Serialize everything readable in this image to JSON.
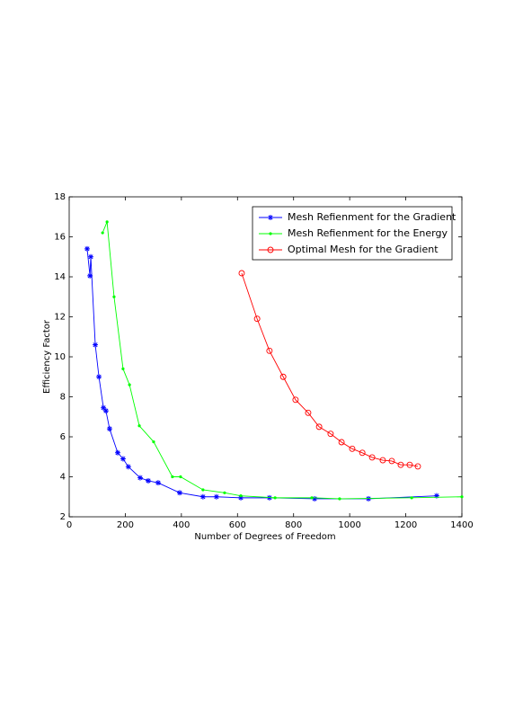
{
  "chart_data": {
    "type": "line",
    "x_label": "Number of Degrees of Freedom",
    "y_label": "Efficiency Factor",
    "xlim": [
      0,
      1400
    ],
    "xticks": [
      0,
      200,
      400,
      600,
      800,
      1000,
      1200,
      1400
    ],
    "ylim": [
      2,
      18
    ],
    "yticks": [
      2,
      4,
      6,
      8,
      10,
      12,
      14,
      16,
      18
    ],
    "grid": false,
    "legend": "upper right",
    "series": [
      {
        "name": "Mesh Refienment for the Gradient",
        "color": "#0000ff",
        "marker": "*",
        "x": [
          64,
          74,
          77,
          93,
          106,
          122,
          131,
          144,
          173,
          192,
          211,
          253,
          282,
          317,
          394,
          477,
          525,
          612,
          714,
          875,
          1067,
          1310
        ],
        "values": [
          15.4,
          14.05,
          15.0,
          10.6,
          9.0,
          7.45,
          7.3,
          6.4,
          5.2,
          4.9,
          4.5,
          3.95,
          3.8,
          3.7,
          3.2,
          3.0,
          3.0,
          2.95,
          2.95,
          2.9,
          2.9,
          3.05
        ]
      },
      {
        "name": "Mesh Refienment for the Energy",
        "color": "#00ff00",
        "marker": ".",
        "x": [
          119,
          135,
          160,
          192,
          215,
          250,
          301,
          368,
          397,
          477,
          554,
          612,
          734,
          865,
          964,
          1221,
          1400
        ],
        "values": [
          16.2,
          16.75,
          13.0,
          9.4,
          8.6,
          6.55,
          5.75,
          4.0,
          4.0,
          3.35,
          3.2,
          3.05,
          2.95,
          2.95,
          2.9,
          2.95,
          3.0
        ]
      },
      {
        "name": "Optimal Mesh for the Gradient",
        "color": "#ff0000",
        "marker": "o",
        "x": [
          615,
          670,
          714,
          763,
          807,
          852,
          891,
          932,
          971,
          1009,
          1045,
          1080,
          1118,
          1150,
          1182,
          1214,
          1243
        ],
        "values": [
          14.18,
          11.9,
          10.3,
          9.0,
          7.85,
          7.2,
          6.5,
          6.15,
          5.73,
          5.4,
          5.2,
          4.97,
          4.83,
          4.79,
          4.6,
          4.6,
          4.52
        ]
      }
    ]
  }
}
